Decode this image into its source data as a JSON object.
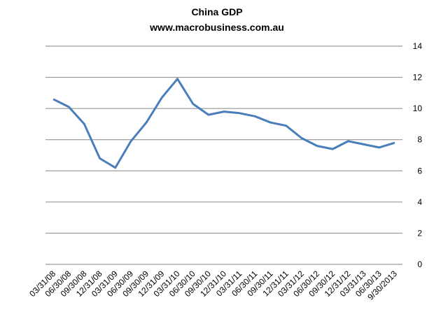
{
  "chart_data": {
    "type": "line",
    "title": "China GDP",
    "subtitle": "www.macrobusiness.com.au",
    "categories": [
      "03/31/08",
      "06/30/08",
      "09/30/08",
      "12/31/08",
      "03/31/09",
      "06/30/09",
      "09/30/09",
      "12/31/09",
      "03/31/10",
      "06/30/10",
      "09/30/10",
      "12/31/10",
      "03/31/11",
      "06/30/11",
      "09/30/11",
      "12/31/11",
      "03/31/12",
      "06/30/12",
      "09/30/12",
      "12/31/12",
      "03/31/13",
      "06/30/13",
      "9/30/2013"
    ],
    "values": [
      10.6,
      10.1,
      9.0,
      6.8,
      6.2,
      7.9,
      9.1,
      10.7,
      11.9,
      10.3,
      9.6,
      9.8,
      9.7,
      9.5,
      9.1,
      8.9,
      8.1,
      7.6,
      7.4,
      7.9,
      7.7,
      7.5,
      7.8
    ],
    "color": "#4a7ebb",
    "ylim": [
      0,
      14
    ],
    "yticks": [
      0,
      2,
      4,
      6,
      8,
      10,
      12,
      14
    ],
    "y_axis_side": "right",
    "grid": true
  }
}
